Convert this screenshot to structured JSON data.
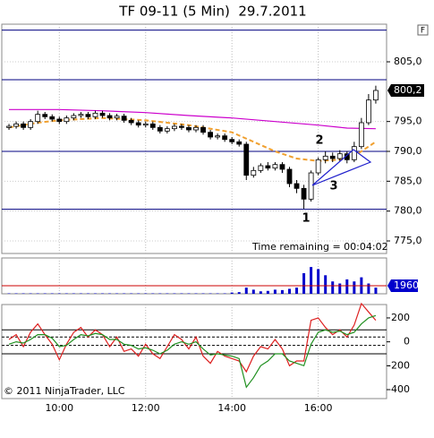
{
  "chart_data": [
    {
      "type": "candlestick",
      "title": "TF 09-11 (5 Min)  29.7.2011",
      "button": "F",
      "x": [
        530,
        540,
        550,
        560,
        570,
        580,
        590,
        600,
        610,
        620,
        630,
        640,
        650,
        660,
        670,
        680,
        690,
        700,
        710,
        720,
        730,
        740,
        750,
        760,
        770,
        780,
        790,
        800,
        810,
        820,
        830,
        840,
        850,
        860,
        870,
        880,
        890,
        900,
        910,
        920,
        930,
        940,
        950,
        960,
        970,
        980,
        990,
        1000,
        1010,
        1020,
        1030,
        1040
      ],
      "open": [
        794.0,
        794.2,
        794.6,
        794.0,
        795.0,
        796.2,
        795.8,
        795.4,
        795.0,
        795.6,
        796.0,
        796.2,
        795.8,
        796.4,
        796.0,
        795.6,
        795.9,
        795.2,
        794.8,
        794.4,
        794.6,
        794.0,
        793.4,
        793.8,
        794.2,
        794.0,
        793.6,
        794.0,
        793.2,
        792.4,
        792.6,
        792.0,
        791.6,
        791.2,
        786.0,
        786.8,
        787.6,
        787.2,
        787.8,
        787.0,
        784.6,
        783.8,
        782.0,
        786.4,
        788.6,
        789.2,
        788.8,
        789.6,
        788.6,
        790.8,
        794.8,
        798.6
      ],
      "high": [
        794.6,
        795.0,
        795.0,
        795.4,
        796.8,
        796.6,
        796.2,
        795.8,
        796.0,
        796.4,
        796.6,
        796.6,
        796.8,
        796.8,
        796.4,
        796.3,
        796.3,
        795.6,
        795.2,
        795.0,
        795.0,
        794.4,
        794.2,
        794.6,
        794.6,
        794.4,
        794.4,
        794.4,
        793.6,
        793.0,
        793.0,
        792.4,
        792.0,
        791.6,
        787.4,
        788.0,
        788.2,
        788.2,
        788.2,
        787.4,
        785.2,
        784.4,
        786.8,
        789.0,
        790.0,
        789.8,
        790.2,
        790.0,
        791.6,
        795.6,
        799.6,
        801.0
      ],
      "low": [
        793.6,
        793.8,
        793.6,
        793.6,
        794.6,
        795.4,
        795.0,
        794.6,
        794.6,
        795.2,
        795.6,
        795.4,
        795.4,
        795.6,
        795.2,
        795.2,
        794.8,
        794.4,
        794.0,
        794.0,
        793.6,
        793.0,
        793.0,
        793.4,
        793.6,
        793.2,
        793.2,
        792.8,
        792.0,
        792.0,
        791.6,
        791.2,
        790.8,
        785.2,
        785.6,
        786.4,
        786.8,
        786.8,
        786.4,
        784.0,
        783.0,
        780.4,
        781.6,
        786.0,
        788.0,
        788.2,
        788.4,
        788.0,
        788.2,
        790.4,
        794.4,
        798.0
      ],
      "close": [
        794.2,
        794.6,
        794.0,
        795.0,
        796.2,
        795.8,
        795.4,
        795.0,
        795.6,
        796.0,
        796.2,
        795.8,
        796.4,
        796.0,
        795.6,
        795.9,
        795.2,
        794.8,
        794.4,
        794.6,
        794.0,
        793.4,
        793.8,
        794.2,
        794.0,
        793.6,
        794.0,
        793.2,
        792.4,
        792.6,
        792.0,
        791.6,
        791.2,
        786.0,
        786.8,
        787.6,
        787.2,
        787.8,
        787.0,
        784.6,
        783.8,
        782.0,
        786.4,
        788.6,
        789.2,
        788.8,
        789.6,
        788.6,
        790.8,
        794.8,
        798.6,
        800.2
      ],
      "last_price": {
        "value": 800.2,
        "label": "800,2"
      },
      "overlays": [
        {
          "color": "#cc00cc",
          "style": "solid",
          "x": [
            530,
            600,
            660,
            720,
            780,
            840,
            900,
            960,
            1000,
            1040
          ],
          "values": [
            797.0,
            797.0,
            796.8,
            796.5,
            796.0,
            795.6,
            795.0,
            794.4,
            793.9,
            793.8
          ]
        },
        {
          "color": "#f0a030",
          "style": "dashed",
          "x": [
            530,
            570,
            600,
            660,
            720,
            780,
            840,
            870,
            900,
            930,
            960,
            990,
            1010,
            1040
          ],
          "values": [
            794.0,
            794.8,
            795.2,
            795.6,
            795.2,
            794.4,
            793.2,
            791.6,
            790.0,
            788.8,
            788.4,
            788.6,
            789.2,
            791.6
          ]
        }
      ],
      "hlines": [
        810.3,
        802.0,
        790.0,
        780.3
      ],
      "hline_color": "#000080",
      "annotations": [
        "1",
        "2",
        "3",
        "Time remaining = 00:04:02"
      ],
      "xlim": [
        520,
        1055
      ],
      "xticks": [
        {
          "value": 600,
          "label": "10:00"
        },
        {
          "value": 720,
          "label": "12:00"
        },
        {
          "value": 840,
          "label": "14:00"
        },
        {
          "value": 960,
          "label": "16:00"
        }
      ],
      "ylim": [
        772.9,
        811.3
      ],
      "yticks": [
        {
          "value": 775,
          "label": "775,0"
        },
        {
          "value": 780,
          "label": "780,0"
        },
        {
          "value": 785,
          "label": "785,0"
        },
        {
          "value": 790,
          "label": "790,0"
        },
        {
          "value": 795,
          "label": "795,0"
        },
        {
          "value": 805,
          "label": "805,0"
        }
      ],
      "grid": true
    },
    {
      "type": "bar",
      "color": "#0000cc",
      "x": [
        530,
        540,
        550,
        560,
        570,
        580,
        590,
        600,
        610,
        620,
        630,
        640,
        650,
        660,
        670,
        680,
        690,
        700,
        710,
        720,
        730,
        740,
        750,
        760,
        770,
        780,
        790,
        800,
        810,
        820,
        830,
        840,
        850,
        860,
        870,
        880,
        890,
        900,
        910,
        920,
        930,
        940,
        950,
        960,
        970,
        980,
        990,
        1000,
        1010,
        1020,
        1030,
        1040
      ],
      "values": [
        100,
        100,
        100,
        100,
        100,
        100,
        100,
        100,
        100,
        100,
        100,
        100,
        100,
        100,
        100,
        100,
        100,
        100,
        100,
        100,
        100,
        100,
        100,
        100,
        100,
        100,
        100,
        100,
        100,
        100,
        100,
        300,
        400,
        1500,
        1000,
        600,
        700,
        1000,
        900,
        1200,
        1500,
        5000,
        6500,
        6000,
        4500,
        3000,
        2500,
        3500,
        3000,
        4000,
        2500,
        1500
      ],
      "ref_line": 1960,
      "ref_color": "#cc0000",
      "xlim": [
        520,
        1055
      ],
      "ylim": [
        0,
        8700
      ]
    },
    {
      "type": "line",
      "x": [
        530,
        540,
        550,
        560,
        570,
        580,
        590,
        600,
        610,
        620,
        630,
        640,
        650,
        660,
        670,
        680,
        690,
        700,
        710,
        720,
        730,
        740,
        750,
        760,
        770,
        780,
        790,
        800,
        810,
        820,
        830,
        840,
        850,
        860,
        870,
        880,
        890,
        900,
        910,
        920,
        930,
        940,
        950,
        960,
        970,
        980,
        990,
        1000,
        1010,
        1020,
        1030,
        1040
      ],
      "series": [
        {
          "color": "#dd2020",
          "values": [
            20,
            60,
            -40,
            80,
            150,
            60,
            -20,
            -150,
            -20,
            80,
            120,
            40,
            100,
            60,
            -40,
            40,
            -80,
            -60,
            -120,
            -20,
            -100,
            -140,
            -40,
            60,
            20,
            -60,
            40,
            -120,
            -180,
            -80,
            -120,
            -140,
            -160,
            -250,
            -120,
            -40,
            -60,
            20,
            -60,
            -200,
            -160,
            -160,
            180,
            200,
            120,
            60,
            100,
            40,
            140,
            320,
            250,
            180
          ]
        },
        {
          "color": "#209020",
          "values": [
            -20,
            0,
            -10,
            20,
            60,
            60,
            30,
            -40,
            -30,
            20,
            60,
            50,
            70,
            60,
            20,
            20,
            -20,
            -30,
            -60,
            -50,
            -70,
            -100,
            -70,
            -20,
            0,
            -20,
            0,
            -60,
            -110,
            -100,
            -110,
            -120,
            -140,
            -380,
            -300,
            -200,
            -160,
            -100,
            -100,
            -160,
            -180,
            -200,
            -20,
            80,
            100,
            80,
            90,
            60,
            80,
            150,
            200,
            220
          ]
        }
      ],
      "levels": [
        {
          "value": 100,
          "style": "solid"
        },
        {
          "value": 40,
          "style": "dashed"
        },
        {
          "value": -30,
          "style": "dashed"
        },
        {
          "value": -100,
          "style": "solid"
        }
      ],
      "copyright": "© 2011 NinjaTrader, LLC",
      "xlim": [
        520,
        1055
      ],
      "ylim": [
        -475,
        312
      ],
      "yticks": [
        200,
        0,
        -200,
        -400
      ]
    }
  ]
}
